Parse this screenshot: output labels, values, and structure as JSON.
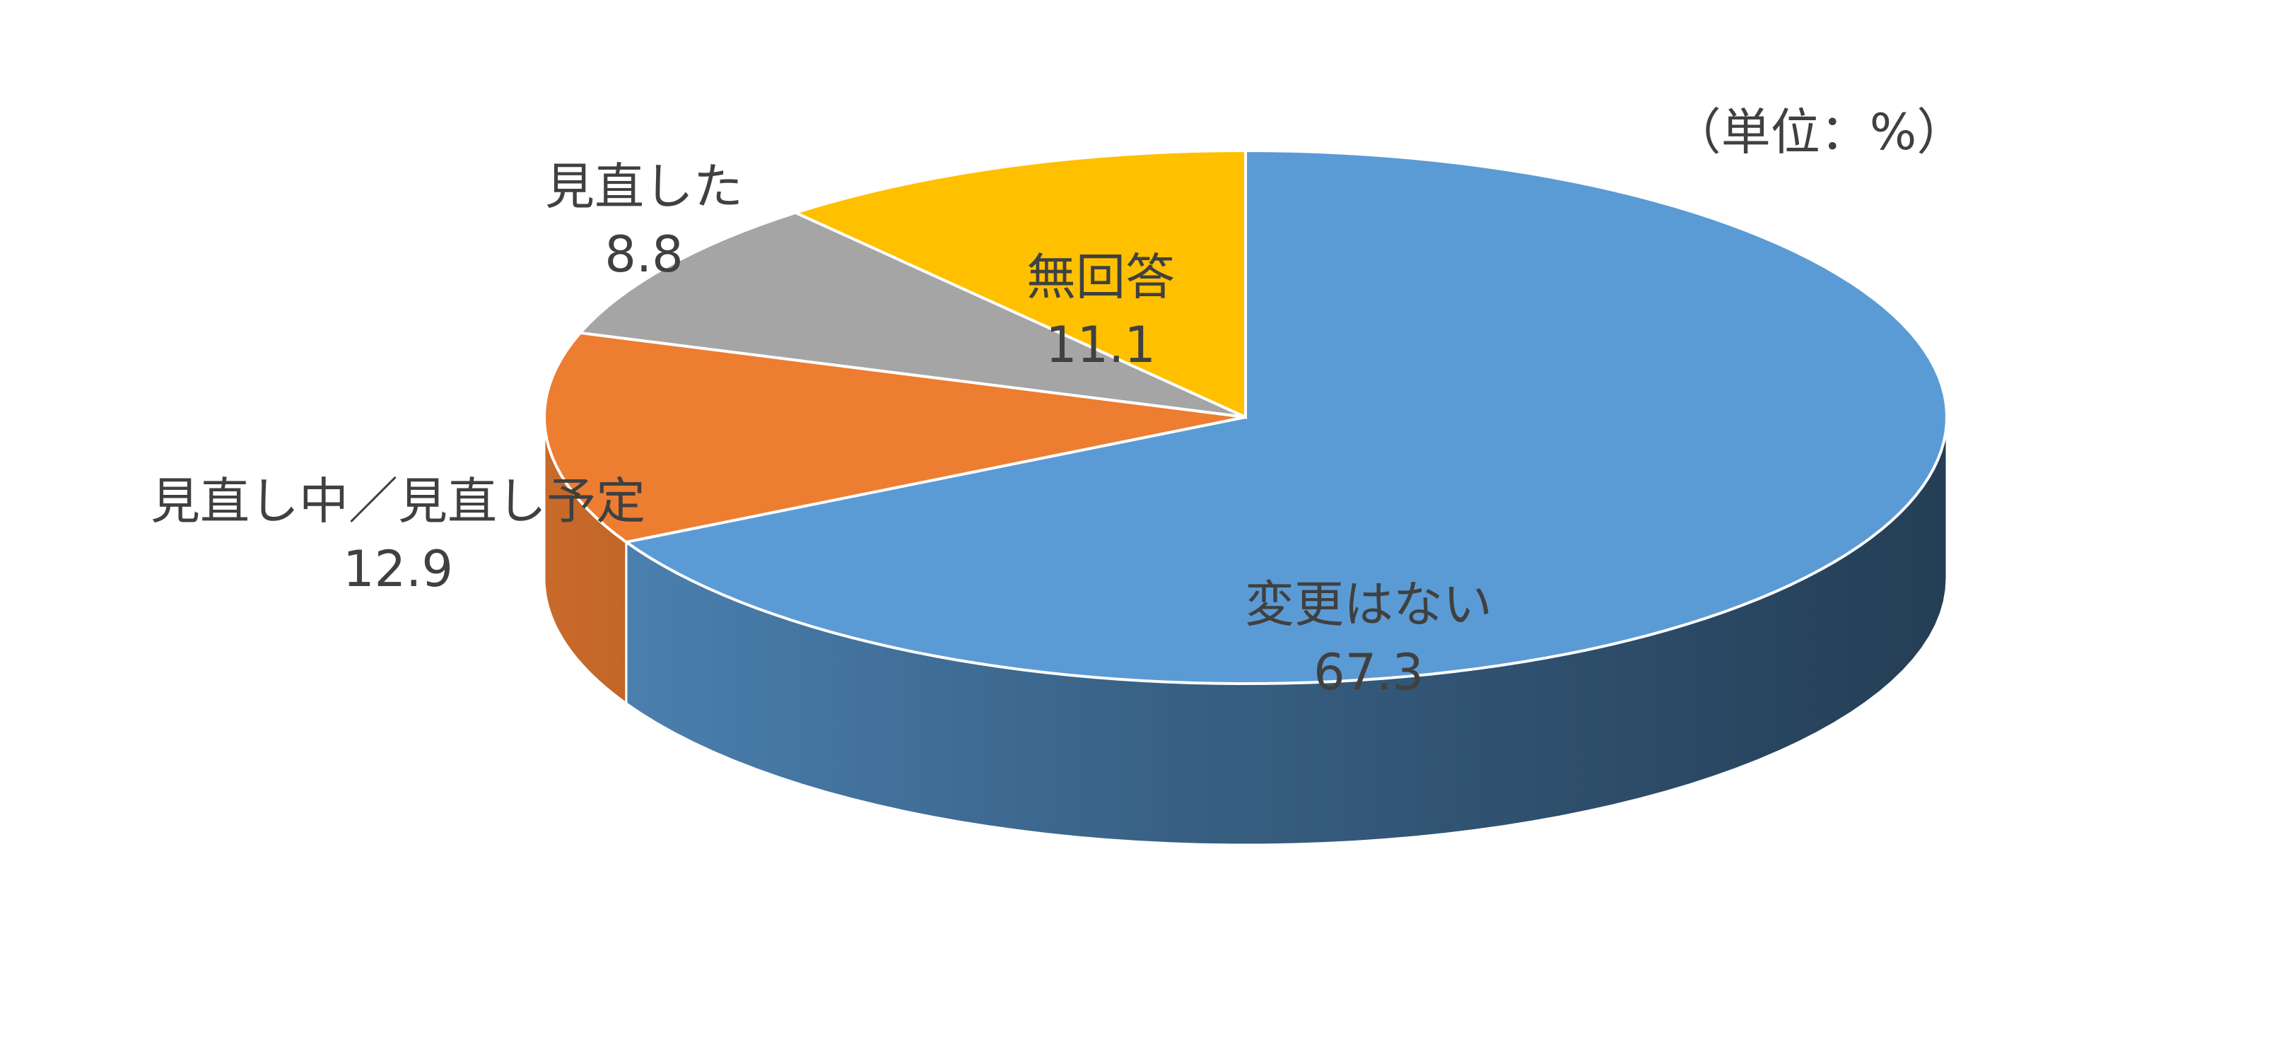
{
  "chart_data": {
    "type": "pie3d",
    "unit_note": "（単位：%）",
    "series": [
      {
        "name": "変更はない",
        "value": 67.3,
        "color": "#5b9bd5"
      },
      {
        "name": "見直し中／見直し予定",
        "value": 12.9,
        "color": "#ed7d31"
      },
      {
        "name": "見直した",
        "value": 8.8,
        "color": "#a5a5a5"
      },
      {
        "name": "無回答",
        "value": 11.1,
        "color": "#ffc000"
      }
    ]
  }
}
